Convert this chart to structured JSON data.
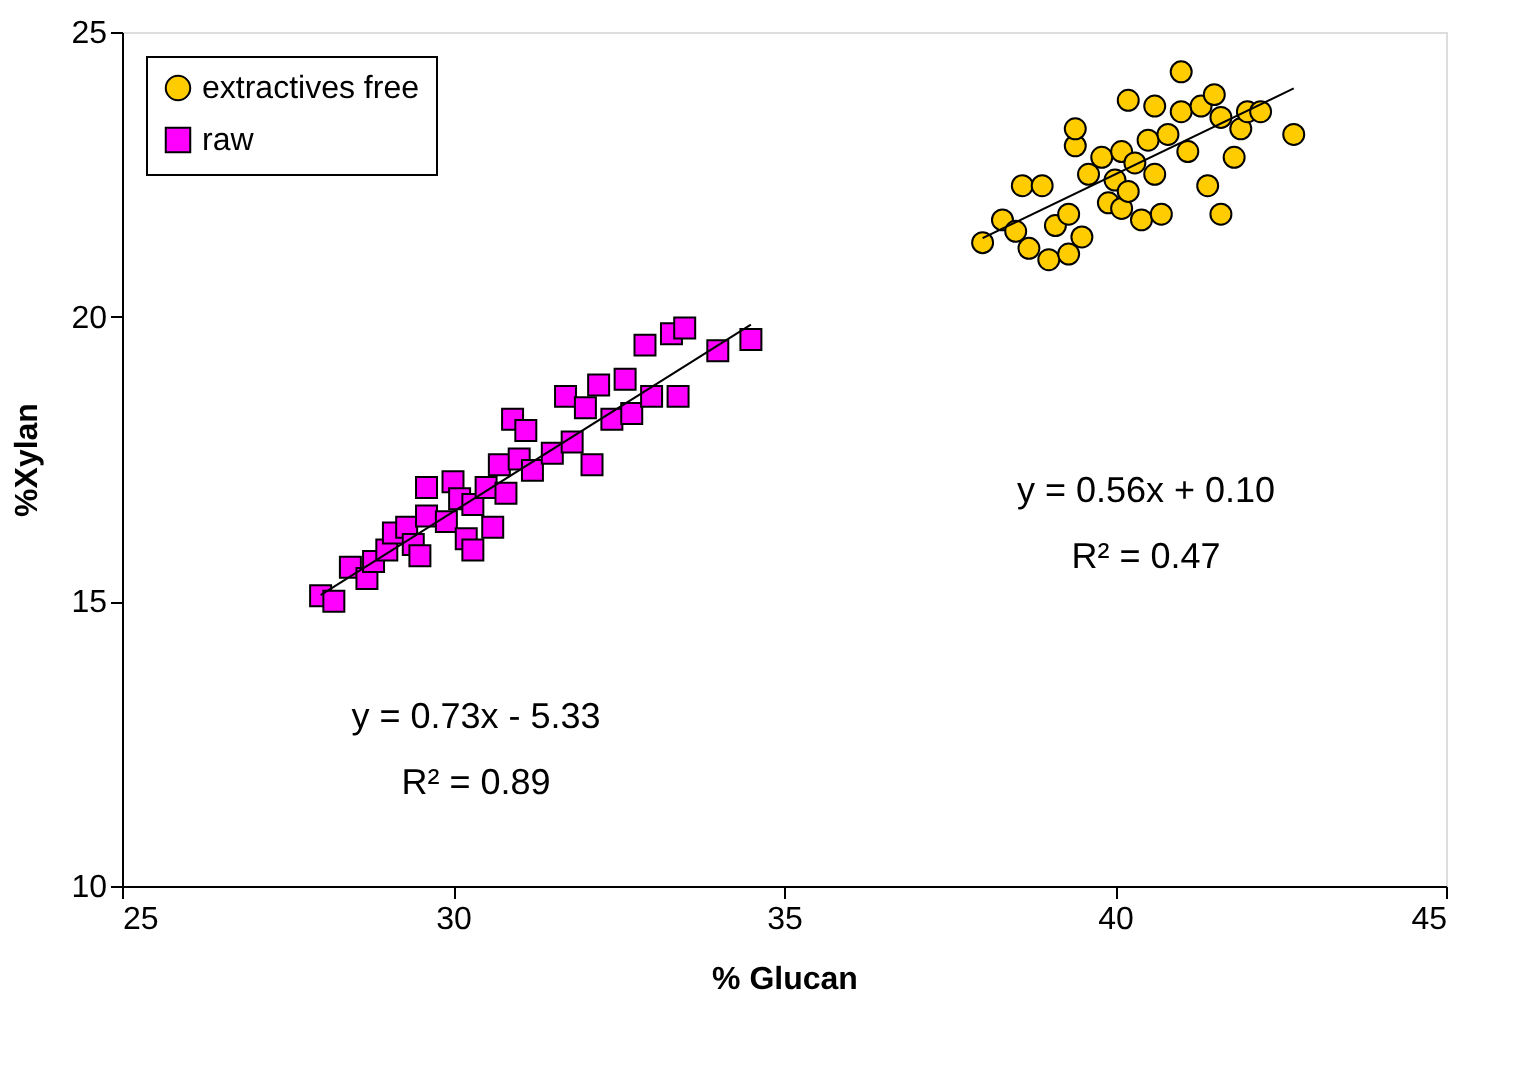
{
  "chart_data": {
    "type": "scatter",
    "xlabel": "% Glucan",
    "ylabel": "%Xylan",
    "xlim": [
      25,
      45
    ],
    "ylim": [
      10,
      25
    ],
    "xticks": [
      25,
      30,
      35,
      40,
      45
    ],
    "yticks": [
      10,
      15,
      20,
      25
    ],
    "grid": false,
    "legend": "top left",
    "series": [
      {
        "name": "extractives free",
        "color": "#ffcc00",
        "marker": "circle",
        "x": [
          38.0,
          38.3,
          38.5,
          38.7,
          38.6,
          38.9,
          39.0,
          39.1,
          39.3,
          39.3,
          39.4,
          39.4,
          39.5,
          39.6,
          39.8,
          39.9,
          40.0,
          40.1,
          40.1,
          40.2,
          40.2,
          40.3,
          40.4,
          40.5,
          40.6,
          40.6,
          40.7,
          40.8,
          41.0,
          41.0,
          41.1,
          41.3,
          41.4,
          41.5,
          41.6,
          41.6,
          41.8,
          41.9,
          42.0,
          42.2,
          42.7
        ],
        "values": [
          21.3,
          21.7,
          21.5,
          21.2,
          22.3,
          22.3,
          21.0,
          21.6,
          21.1,
          21.8,
          23.0,
          23.3,
          21.4,
          22.5,
          22.8,
          22.0,
          22.4,
          22.9,
          21.9,
          23.8,
          22.2,
          22.7,
          21.7,
          23.1,
          22.5,
          23.7,
          21.8,
          23.2,
          23.6,
          24.3,
          22.9,
          23.7,
          22.3,
          23.9,
          23.5,
          21.8,
          22.8,
          23.3,
          23.6,
          23.6,
          23.2
        ]
      },
      {
        "name": "raw",
        "color": "#ff00ff",
        "marker": "square",
        "x": [
          28.0,
          28.2,
          28.45,
          28.7,
          28.8,
          29.0,
          29.1,
          29.3,
          29.4,
          29.5,
          29.6,
          29.6,
          29.9,
          30.0,
          30.1,
          30.2,
          30.3,
          30.3,
          30.5,
          30.6,
          30.7,
          30.8,
          30.9,
          31.0,
          31.1,
          31.2,
          31.5,
          31.7,
          31.8,
          32.0,
          32.1,
          32.2,
          32.4,
          32.6,
          32.7,
          32.9,
          33.0,
          33.3,
          33.4,
          33.5,
          34.0,
          34.5
        ],
        "values": [
          15.1,
          15.0,
          15.6,
          15.4,
          15.7,
          15.9,
          16.2,
          16.3,
          16.0,
          15.8,
          16.5,
          17.0,
          16.4,
          17.1,
          16.8,
          16.1,
          15.9,
          16.7,
          17.0,
          16.3,
          17.4,
          16.9,
          18.2,
          17.5,
          18.0,
          17.3,
          17.6,
          18.6,
          17.8,
          18.4,
          17.4,
          18.8,
          18.2,
          18.9,
          18.3,
          19.5,
          18.6,
          19.7,
          18.6,
          19.8,
          19.4,
          19.6
        ]
      },
      {
        "type": "line",
        "color": "#000000",
        "x": [
          38.0,
          42.7
        ],
        "values": [
          21.38,
          24.01
        ]
      },
      {
        "type": "line",
        "color": "#000000",
        "x": [
          28.0,
          34.5
        ],
        "values": [
          15.11,
          19.86
        ]
      }
    ],
    "annotations": [
      "y = 0.56x + 0.10",
      "R² = 0.47",
      "y = 0.73x - 5.33",
      "R² = 0.89"
    ]
  }
}
